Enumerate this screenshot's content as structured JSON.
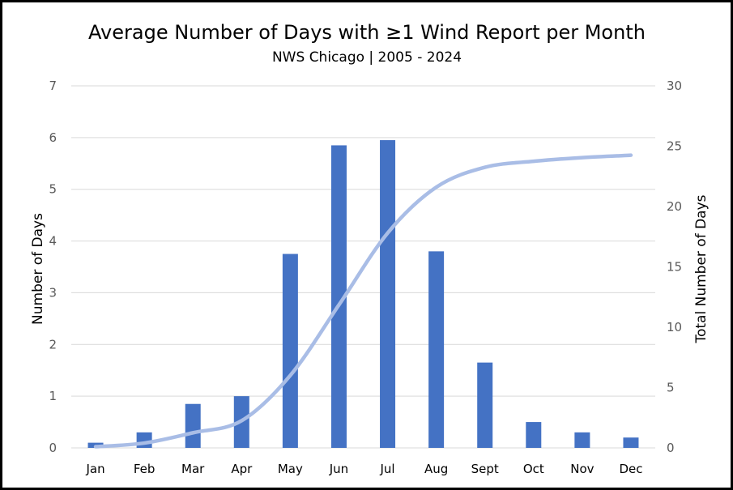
{
  "chart_data": {
    "type": "bar",
    "title": "Average Number of Days with ≥1 Wind Report per Month",
    "subtitle": "NWS Chicago | 2005 - 2024",
    "categories": [
      "Jan",
      "Feb",
      "Mar",
      "Apr",
      "May",
      "Jun",
      "Jul",
      "Aug",
      "Sept",
      "Oct",
      "Nov",
      "Dec"
    ],
    "series": [
      {
        "type": "bar",
        "axis": "left",
        "color": "#4472c4",
        "values": [
          0.1,
          0.3,
          0.85,
          1.0,
          3.75,
          5.85,
          5.95,
          3.8,
          1.65,
          0.5,
          0.3,
          0.2
        ]
      },
      {
        "type": "line",
        "axis": "right",
        "color": "#a9bde6",
        "values": [
          0.1,
          0.4,
          1.25,
          2.25,
          6.0,
          11.85,
          17.8,
          21.6,
          23.25,
          23.75,
          24.05,
          24.25
        ]
      }
    ],
    "ylabel": "Number of Days",
    "ylabel_right": "Total Number of Days",
    "ylim": [
      0,
      7
    ],
    "yticks": [
      0,
      1,
      2,
      3,
      4,
      5,
      6,
      7
    ],
    "ylim_right": [
      0,
      30
    ],
    "yticks_right": [
      0,
      5,
      10,
      15,
      20,
      25,
      30
    ],
    "grid": true,
    "legend": "none"
  }
}
